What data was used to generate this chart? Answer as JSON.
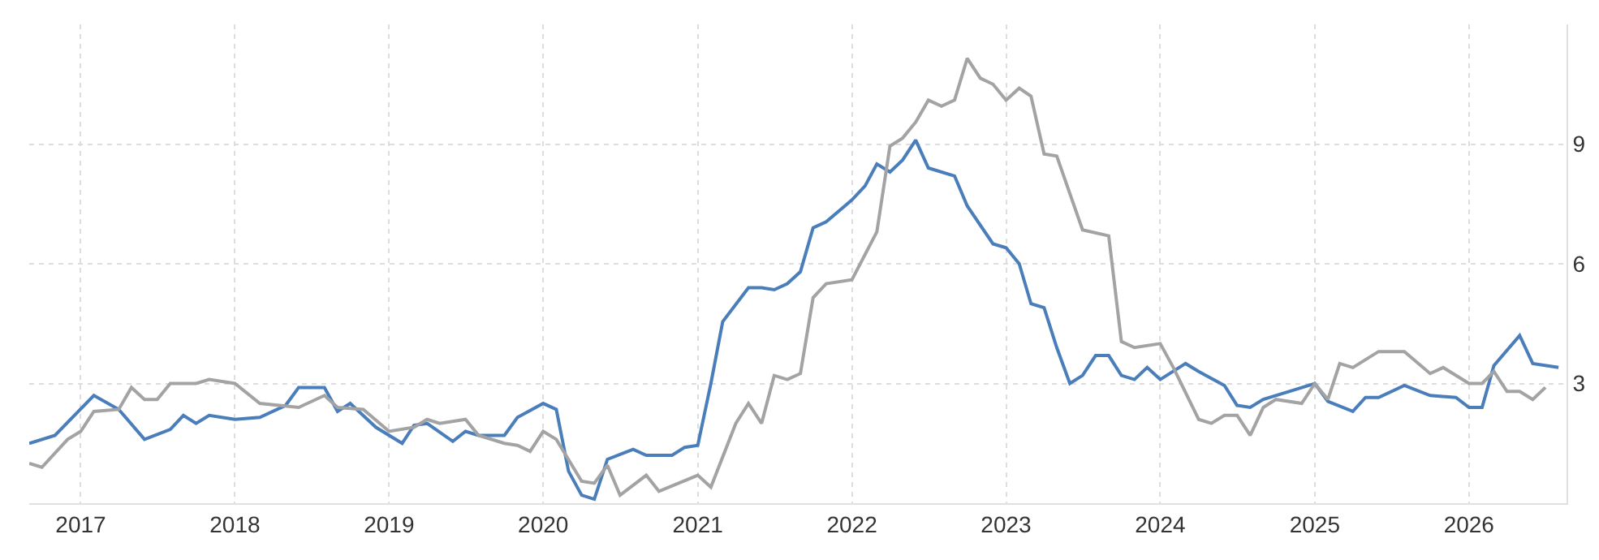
{
  "chart_data": {
    "type": "line",
    "xlim": [
      "2016-09-01",
      "2026-08-20"
    ],
    "ylim": [
      0,
      12
    ],
    "xticks": [
      "2017",
      "2018",
      "2019",
      "2020",
      "2021",
      "2022",
      "2023",
      "2024",
      "2025",
      "2026"
    ],
    "yticks": [
      3,
      6,
      9
    ],
    "grid": true,
    "line_style": "solid",
    "series": [
      {
        "color": "#4a7ebb",
        "x": [
          "2016-09",
          "2016-11",
          "2017-02",
          "2017-04",
          "2017-06",
          "2017-08",
          "2017-09",
          "2017-10",
          "2017-11",
          "2018-01",
          "2018-03",
          "2018-05",
          "2018-06",
          "2018-08",
          "2018-09",
          "2018-10",
          "2018-12",
          "2019-02",
          "2019-03",
          "2019-04",
          "2019-06",
          "2019-07",
          "2019-08",
          "2019-10",
          "2019-11",
          "2020-01",
          "2020-02",
          "2020-03",
          "2020-04",
          "2020-05",
          "2020-06",
          "2020-08",
          "2020-09",
          "2020-11",
          "2020-12",
          "2021-01",
          "2021-02",
          "2021-03",
          "2021-05",
          "2021-06",
          "2021-07",
          "2021-08",
          "2021-09",
          "2021-10",
          "2021-11",
          "2022-01",
          "2022-02",
          "2022-03",
          "2022-04",
          "2022-05",
          "2022-06",
          "2022-07",
          "2022-09",
          "2022-10",
          "2022-12",
          "2023-01",
          "2023-02",
          "2023-03",
          "2023-04",
          "2023-05",
          "2023-06",
          "2023-07",
          "2023-08",
          "2023-09",
          "2023-10",
          "2023-11",
          "2023-12",
          "2024-01",
          "2024-03",
          "2024-04",
          "2024-06",
          "2024-07",
          "2024-08",
          "2024-09",
          "2024-11",
          "2025-01",
          "2025-02",
          "2025-04",
          "2025-05",
          "2025-06",
          "2025-08",
          "2025-10",
          "2025-12",
          "2026-01",
          "2026-02",
          "2026-03",
          "2026-05",
          "2026-06",
          "2026-08"
        ],
        "values": [
          1.5,
          1.7,
          2.7,
          2.35,
          1.6,
          1.85,
          2.2,
          2.0,
          2.2,
          2.1,
          2.15,
          2.45,
          2.9,
          2.9,
          2.3,
          2.5,
          1.9,
          1.5,
          1.95,
          2.0,
          1.55,
          1.8,
          1.7,
          1.7,
          2.15,
          2.5,
          2.35,
          0.8,
          0.2,
          0.1,
          1.1,
          1.35,
          1.2,
          1.2,
          1.4,
          1.45,
          3.0,
          4.55,
          5.4,
          5.4,
          5.35,
          5.5,
          5.8,
          6.9,
          7.05,
          7.6,
          7.95,
          8.5,
          8.3,
          8.6,
          9.1,
          8.4,
          8.2,
          7.45,
          6.5,
          6.4,
          6.0,
          5.0,
          4.9,
          3.9,
          3.0,
          3.2,
          3.7,
          3.7,
          3.2,
          3.1,
          3.4,
          3.1,
          3.5,
          3.3,
          2.95,
          2.45,
          2.4,
          2.6,
          2.8,
          3.0,
          2.55,
          2.3,
          2.65,
          2.65,
          2.95,
          2.7,
          2.65,
          2.4,
          2.4,
          3.45,
          4.2,
          3.5,
          3.4
        ]
      },
      {
        "color": "#a3a3a3",
        "x": [
          "2016-09",
          "2016-10",
          "2016-12",
          "2017-01",
          "2017-02",
          "2017-04",
          "2017-05",
          "2017-06",
          "2017-07",
          "2017-08",
          "2017-10",
          "2017-11",
          "2018-01",
          "2018-03",
          "2018-06",
          "2018-08",
          "2018-09",
          "2018-11",
          "2019-01",
          "2019-03",
          "2019-04",
          "2019-05",
          "2019-07",
          "2019-08",
          "2019-10",
          "2019-11",
          "2019-12",
          "2020-01",
          "2020-02",
          "2020-04",
          "2020-05",
          "2020-06",
          "2020-07",
          "2020-09",
          "2020-10",
          "2021-01",
          "2021-02",
          "2021-04",
          "2021-05",
          "2021-06",
          "2021-07",
          "2021-08",
          "2021-09",
          "2021-10",
          "2021-11",
          "2022-01",
          "2022-03",
          "2022-04",
          "2022-05",
          "2022-06",
          "2022-07",
          "2022-08",
          "2022-09",
          "2022-10",
          "2022-11",
          "2022-12",
          "2023-01",
          "2023-02",
          "2023-03",
          "2023-04",
          "2023-05",
          "2023-07",
          "2023-09",
          "2023-10",
          "2023-11",
          "2024-01",
          "2024-02",
          "2024-04",
          "2024-05",
          "2024-06",
          "2024-07",
          "2024-08",
          "2024-09",
          "2024-10",
          "2024-12",
          "2025-01",
          "2025-02",
          "2025-03",
          "2025-04",
          "2025-06",
          "2025-08",
          "2025-10",
          "2025-11",
          "2026-01",
          "2026-02",
          "2026-03",
          "2026-04",
          "2026-05",
          "2026-06",
          "2026-07"
        ],
        "values": [
          1.0,
          0.9,
          1.6,
          1.8,
          2.3,
          2.35,
          2.9,
          2.6,
          2.6,
          3.0,
          3.0,
          3.1,
          3.0,
          2.5,
          2.4,
          2.7,
          2.4,
          2.35,
          1.8,
          1.9,
          2.1,
          2.0,
          2.1,
          1.7,
          1.5,
          1.45,
          1.3,
          1.8,
          1.6,
          0.55,
          0.5,
          0.95,
          0.2,
          0.7,
          0.3,
          0.7,
          0.4,
          2.0,
          2.5,
          2.0,
          3.2,
          3.1,
          3.25,
          5.15,
          5.5,
          5.6,
          6.8,
          8.95,
          9.15,
          9.55,
          10.1,
          9.95,
          10.1,
          11.15,
          10.65,
          10.5,
          10.1,
          10.4,
          10.2,
          8.75,
          8.7,
          6.85,
          6.7,
          4.05,
          3.9,
          4.0,
          3.4,
          2.1,
          2.0,
          2.2,
          2.2,
          1.7,
          2.4,
          2.6,
          2.5,
          3.0,
          2.6,
          3.5,
          3.4,
          3.8,
          3.8,
          3.25,
          3.4,
          3.0,
          3.0,
          3.3,
          2.8,
          2.8,
          2.6,
          2.9
        ]
      }
    ]
  }
}
